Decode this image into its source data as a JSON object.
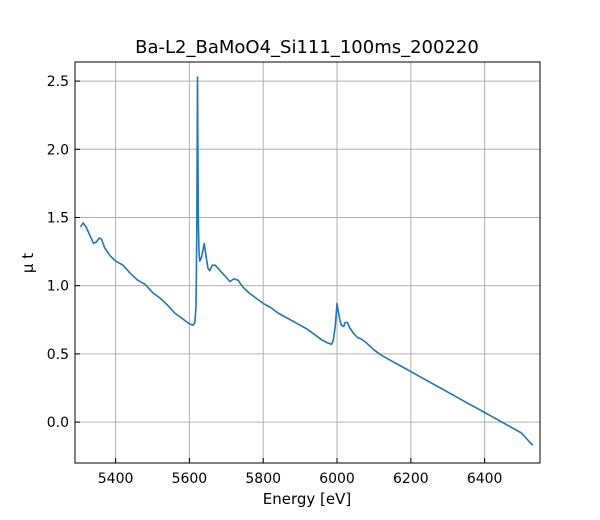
{
  "chart_data": {
    "type": "line",
    "title": "Ba-L2_BaMoO4_Si111_100ms_200220",
    "xlabel": "Energy [eV]",
    "ylabel": "μ t",
    "xlim": [
      5290,
      6550
    ],
    "ylim": [
      -0.3,
      2.64
    ],
    "xticks": [
      5400,
      5600,
      5800,
      6000,
      6200,
      6400
    ],
    "xtick_labels": [
      "5400",
      "5600",
      "5800",
      "6000",
      "6200",
      "6400"
    ],
    "yticks": [
      0.0,
      0.5,
      1.0,
      1.5,
      2.0,
      2.5
    ],
    "ytick_labels": [
      "0.0",
      "0.5",
      "1.0",
      "1.5",
      "2.0",
      "2.5"
    ],
    "grid": true,
    "colors": {
      "line": "#1f77b4",
      "grid": "#b0b0b0",
      "frame": "#000000"
    },
    "series": [
      {
        "x": [
          5305,
          5312,
          5320,
          5330,
          5340,
          5348,
          5356,
          5362,
          5370,
          5385,
          5400,
          5420,
          5440,
          5460,
          5480,
          5500,
          5520,
          5540,
          5560,
          5580,
          5600,
          5610,
          5615,
          5618,
          5620,
          5622,
          5624,
          5626,
          5628,
          5632,
          5636,
          5640,
          5645,
          5650,
          5655,
          5662,
          5670,
          5680,
          5690,
          5700,
          5710,
          5720,
          5732,
          5745,
          5760,
          5780,
          5800,
          5820,
          5840,
          5860,
          5880,
          5900,
          5920,
          5940,
          5960,
          5975,
          5985,
          5990,
          5995,
          5998,
          6000,
          6003,
          6008,
          6012,
          6018,
          6022,
          6028,
          6035,
          6045,
          6055,
          6065,
          6080,
          6100,
          6120,
          6140,
          6160,
          6180,
          6200,
          6220,
          6240,
          6260,
          6280,
          6300,
          6320,
          6340,
          6360,
          6380,
          6400,
          6420,
          6440,
          6460,
          6480,
          6500,
          6530
        ],
        "y": [
          1.43,
          1.46,
          1.43,
          1.37,
          1.31,
          1.32,
          1.35,
          1.34,
          1.28,
          1.22,
          1.18,
          1.15,
          1.09,
          1.04,
          1.01,
          0.95,
          0.91,
          0.86,
          0.8,
          0.76,
          0.72,
          0.71,
          0.73,
          0.85,
          1.4,
          2.53,
          1.5,
          1.25,
          1.18,
          1.2,
          1.25,
          1.31,
          1.22,
          1.13,
          1.11,
          1.15,
          1.15,
          1.12,
          1.09,
          1.06,
          1.03,
          1.05,
          1.04,
          0.99,
          0.95,
          0.91,
          0.87,
          0.84,
          0.8,
          0.77,
          0.74,
          0.71,
          0.68,
          0.64,
          0.6,
          0.58,
          0.57,
          0.6,
          0.7,
          0.8,
          0.87,
          0.82,
          0.74,
          0.71,
          0.7,
          0.73,
          0.73,
          0.69,
          0.65,
          0.62,
          0.61,
          0.58,
          0.53,
          0.49,
          0.46,
          0.43,
          0.4,
          0.37,
          0.34,
          0.31,
          0.28,
          0.25,
          0.22,
          0.19,
          0.16,
          0.13,
          0.1,
          0.07,
          0.04,
          0.01,
          -0.02,
          -0.05,
          -0.08,
          -0.17
        ]
      }
    ]
  }
}
